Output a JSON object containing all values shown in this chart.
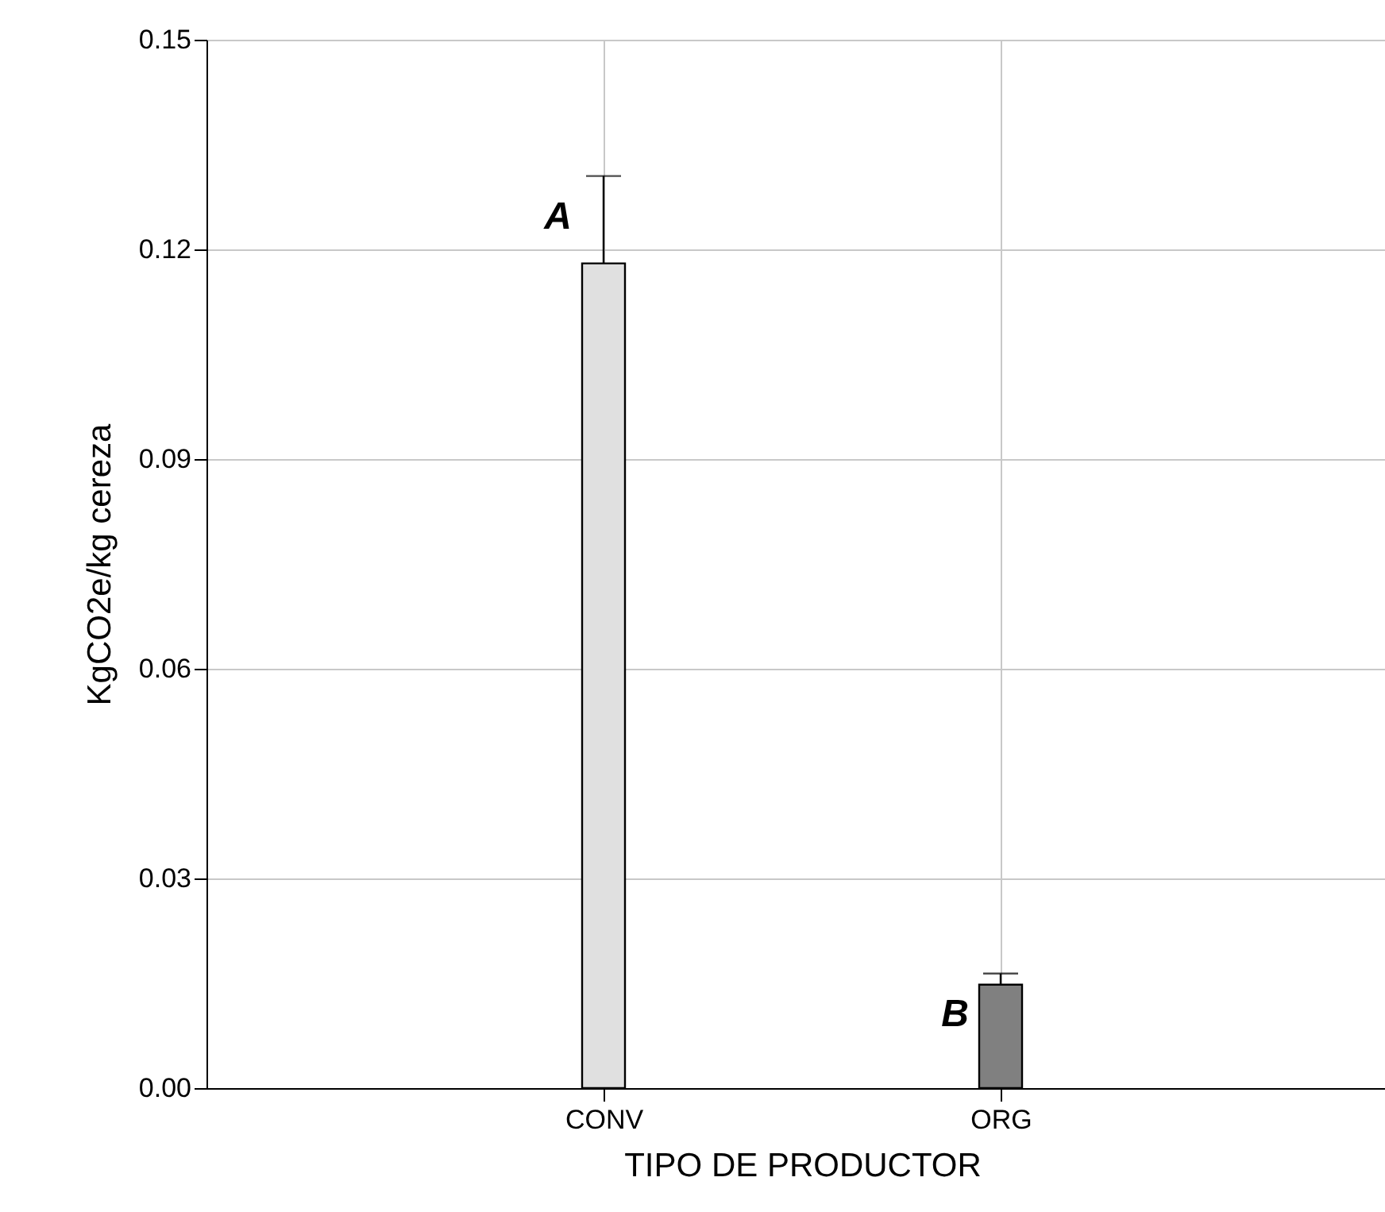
{
  "chart_data": {
    "type": "bar",
    "xlabel": "TIPO DE PRODUCTOR",
    "ylabel": "KgCO2e/kg cereza",
    "categories": [
      "CONV",
      "ORG"
    ],
    "values": [
      0.118,
      0.0148
    ],
    "colors": [
      "#e0e0e0",
      "#808080"
    ],
    "errors": [
      [
        0.118,
        0.1305
      ],
      [
        0.0148,
        0.0164
      ]
    ],
    "ylim": [
      0,
      0.15
    ],
    "yticks": [
      {
        "value": 0,
        "label": "0.00"
      },
      0.03,
      0.06,
      0.09,
      0.12,
      0.15
    ],
    "grid": true,
    "annotations": [
      {
        "text": "A",
        "x": "CONV",
        "y": 0.1305
      },
      {
        "text": "B",
        "x": "ORG",
        "y": 0.0164
      }
    ]
  }
}
